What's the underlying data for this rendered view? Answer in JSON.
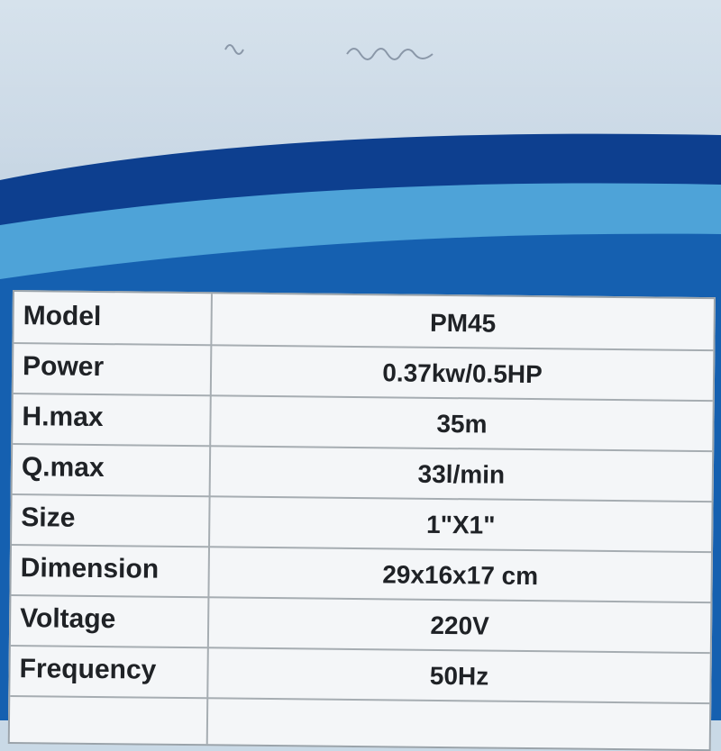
{
  "colors": {
    "dark_band": "#0d3f8f",
    "light_band": "#4ea3d8",
    "lower_band": "#1560b0",
    "paper": "#cbd9e6"
  },
  "specs": [
    {
      "label": "Model",
      "value": "PM45"
    },
    {
      "label": "Power",
      "value": "0.37kw/0.5HP"
    },
    {
      "label": "H.max",
      "value": "35m"
    },
    {
      "label": "Q.max",
      "value": "33l/min"
    },
    {
      "label": "Size",
      "value": "1\"X1\""
    },
    {
      "label": "Dimension",
      "value": "29x16x17 cm"
    },
    {
      "label": "Voltage",
      "value": "220V"
    },
    {
      "label": "Frequency",
      "value": "50Hz"
    }
  ]
}
